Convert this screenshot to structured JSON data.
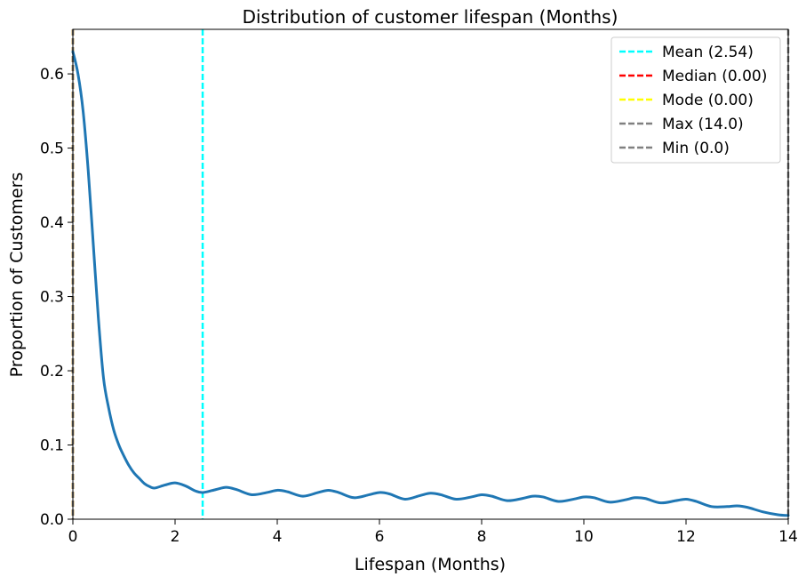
{
  "chart_data": {
    "type": "line",
    "title": "Distribution of customer lifespan (Months)",
    "xlabel": "Lifespan (Months)",
    "ylabel": "Proportion of Customers",
    "xlim": [
      0,
      14
    ],
    "ylim": [
      0,
      0.66
    ],
    "x_ticks": [
      0,
      2,
      4,
      6,
      8,
      10,
      12,
      14
    ],
    "x_tick_labels": [
      "0",
      "2",
      "4",
      "6",
      "8",
      "10",
      "12",
      "14"
    ],
    "y_ticks": [
      0,
      0.1,
      0.2,
      0.3,
      0.4,
      0.5,
      0.6
    ],
    "y_tick_labels": [
      "0.0",
      "0.1",
      "0.2",
      "0.3",
      "0.4",
      "0.5",
      "0.6"
    ],
    "grid": false,
    "legend_position": "top-right",
    "series": [
      {
        "color": "#1f77b4",
        "x": [
          0.0,
          0.1,
          0.2,
          0.3,
          0.4,
          0.5,
          0.6,
          0.7,
          0.8,
          0.9,
          1.0,
          1.1,
          1.2,
          1.3,
          1.4,
          1.5,
          1.6,
          1.8,
          2.0,
          2.2,
          2.4,
          2.55,
          2.8,
          3.0,
          3.2,
          3.5,
          3.8,
          4.0,
          4.2,
          4.5,
          4.8,
          5.0,
          5.2,
          5.5,
          5.8,
          6.0,
          6.2,
          6.5,
          6.8,
          7.0,
          7.2,
          7.5,
          7.8,
          8.0,
          8.2,
          8.5,
          8.8,
          9.0,
          9.2,
          9.5,
          9.8,
          10.0,
          10.2,
          10.5,
          10.8,
          11.0,
          11.2,
          11.5,
          11.8,
          12.0,
          12.2,
          12.5,
          12.8,
          13.0,
          13.2,
          13.5,
          13.8,
          14.0
        ],
        "y": [
          0.63,
          0.6,
          0.55,
          0.47,
          0.37,
          0.27,
          0.19,
          0.15,
          0.12,
          0.1,
          0.085,
          0.072,
          0.062,
          0.055,
          0.048,
          0.044,
          0.042,
          0.046,
          0.049,
          0.045,
          0.038,
          0.036,
          0.04,
          0.043,
          0.04,
          0.033,
          0.036,
          0.039,
          0.037,
          0.031,
          0.036,
          0.039,
          0.036,
          0.029,
          0.033,
          0.036,
          0.034,
          0.027,
          0.032,
          0.035,
          0.033,
          0.027,
          0.03,
          0.033,
          0.031,
          0.025,
          0.028,
          0.031,
          0.03,
          0.024,
          0.027,
          0.03,
          0.029,
          0.023,
          0.026,
          0.029,
          0.028,
          0.022,
          0.025,
          0.027,
          0.024,
          0.017,
          0.017,
          0.018,
          0.016,
          0.01,
          0.006,
          0.005
        ]
      }
    ],
    "reference_lines": [
      {
        "label": "Mean (2.54)",
        "x": 2.54,
        "color": "#00ffff",
        "style": "dashed"
      },
      {
        "label": "Median (0.00)",
        "x": 0.0,
        "color": "#ff0000",
        "style": "dashed"
      },
      {
        "label": "Mode (0.00)",
        "x": 0.0,
        "color": "#ffff00",
        "style": "dashed"
      },
      {
        "label": "Max (14.0)",
        "x": 14.0,
        "color": "#808080",
        "style": "dashed"
      },
      {
        "label": "Min (0.0)",
        "x": 0.0,
        "color": "#808080",
        "style": "dashed"
      }
    ]
  }
}
